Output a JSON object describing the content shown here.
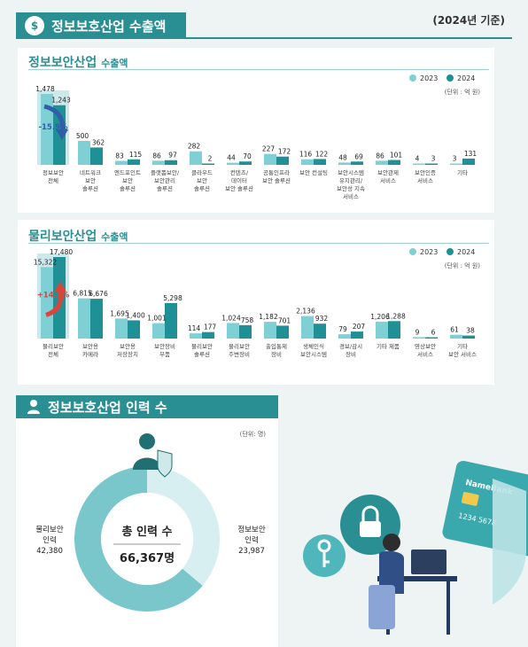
{
  "header": {
    "title": "정보보호산업 수출액",
    "basis": "(2024년 기준)"
  },
  "info_section": {
    "title": "정보보안산업",
    "title_suffix": "수출액",
    "legend": [
      "2023",
      "2024"
    ],
    "unit": "(단위 : 억 원)",
    "change_label": "-15.9%"
  },
  "phys_section": {
    "title": "물리보안산업",
    "title_suffix": "수출액",
    "legend": [
      "2023",
      "2024"
    ],
    "unit": "(단위 : 억 원)",
    "change_label": "+14.1%"
  },
  "workforce": {
    "title": "정보보호산업 인력 수",
    "unit": "(단위: 명)",
    "center_label": "총 인력 수",
    "center_value": "66,367명",
    "left_label_1": "물리보안",
    "left_label_2": "인력",
    "left_value": "42,380",
    "right_label_1": "정보보안",
    "right_label_2": "인력",
    "right_value": "23,987"
  },
  "illustration": {
    "card_brand": "NameBank",
    "card_digits": "1234  5678"
  },
  "colors": {
    "c2023": "#7fd0d4",
    "c2024": "#1f9196",
    "accent": "#2a8f93",
    "highlight": "#cde8ea",
    "arrow_down": "#2f5fa8",
    "arrow_up": "#d9453b"
  },
  "chart_data": [
    {
      "type": "bar",
      "title": "정보보안산업 수출액",
      "ylabel": "억 원",
      "categories": [
        "정보보안 전체",
        "네트워크 보안 솔루션",
        "엔드포인트 보안 솔루션",
        "플랫폼보안/보안관리 솔루션",
        "클라우드 보안 솔루션",
        "컨텐츠/데이터 보안 솔루션",
        "공통인프라 보안 솔루션",
        "보안 컨설팅",
        "보안시스템 유지관리/보안성 지속 서비스",
        "보안관제 서비스",
        "보안인증 서비스",
        "기타"
      ],
      "category_lines": [
        [
          "정보보안",
          "전체"
        ],
        [
          "네트워크",
          "보안",
          "솔루션"
        ],
        [
          "엔드포인트",
          "보안",
          "솔루션"
        ],
        [
          "플랫폼보안/",
          "보안관리",
          "솔루션"
        ],
        [
          "클라우드",
          "보안",
          "솔루션"
        ],
        [
          "컨텐츠/",
          "데이터",
          "보안 솔루션"
        ],
        [
          "공통인프라",
          "보안 솔루션"
        ],
        [
          "보안 컨설팅"
        ],
        [
          "보안시스템",
          "유지관리/",
          "보안성 지속",
          "서비스"
        ],
        [
          "보안관제",
          "서비스"
        ],
        [
          "보안인증",
          "서비스"
        ],
        [
          "기타"
        ]
      ],
      "series": [
        {
          "name": "2023",
          "values": [
            1478,
            500,
            83,
            86,
            282,
            44,
            227,
            116,
            48,
            86,
            4,
            3
          ],
          "labels": [
            "1,478",
            "500",
            "83",
            "86",
            "282",
            "44",
            "227",
            "116",
            "48",
            "86",
            "4",
            "3"
          ]
        },
        {
          "name": "2024",
          "values": [
            1243,
            362,
            115,
            97,
            2,
            70,
            172,
            122,
            69,
            101,
            3,
            131
          ],
          "labels": [
            "1,243",
            "362",
            "115",
            "97",
            "2",
            "70",
            "172",
            "122",
            "69",
            "101",
            "3",
            "131"
          ]
        }
      ],
      "legend": "top-right"
    },
    {
      "type": "bar",
      "title": "물리보안산업 수출액",
      "ylabel": "억 원",
      "categories": [
        "물리보안 전체",
        "보안용 카메라",
        "보안용 저장장치",
        "보안장비 부품",
        "물리보안 솔루션",
        "물리보안 주변장비",
        "출입통제 장비",
        "생체인식 보안시스템",
        "경보/감시 장비",
        "기타 제품",
        "영상보안 서비스",
        "기타 보안 서비스"
      ],
      "category_lines": [
        [
          "물리보안",
          "전체"
        ],
        [
          "보안용",
          "카메라"
        ],
        [
          "보안용",
          "저장장치"
        ],
        [
          "보안장비",
          "부품"
        ],
        [
          "물리보안",
          "솔루션"
        ],
        [
          "물리보안",
          "주변장비"
        ],
        [
          "출입통제",
          "장비"
        ],
        [
          "생체인식",
          "보안시스템"
        ],
        [
          "경보/감시",
          "장비"
        ],
        [
          "기타 제품"
        ],
        [
          "영상보안",
          "서비스"
        ],
        [
          "기타",
          "보안 서비스"
        ]
      ],
      "series": [
        {
          "name": "2023",
          "values": [
            15322,
            6815,
            1695,
            1001,
            114,
            1024,
            1182,
            2136,
            79,
            1206,
            9,
            61
          ],
          "labels": [
            "15,322",
            "6,815",
            "1,695",
            "1,001",
            "114",
            "1,024",
            "1,182",
            "2,136",
            "79",
            "1,206",
            "9",
            "61"
          ]
        },
        {
          "name": "2024",
          "values": [
            17480,
            6676,
            1400,
            5298,
            177,
            758,
            701,
            932,
            207,
            1288,
            6,
            38
          ],
          "labels": [
            "17,480",
            "6,676",
            "1,400",
            "5,298",
            "177",
            "758",
            "701",
            "932",
            "207",
            "1,288",
            "6",
            "38"
          ]
        }
      ],
      "legend": "top-right"
    },
    {
      "type": "pie",
      "title": "정보보호산업 인력 수",
      "categories": [
        "물리보안 인력",
        "정보보안 인력"
      ],
      "values": [
        42380,
        23987
      ],
      "total": 66367
    }
  ]
}
